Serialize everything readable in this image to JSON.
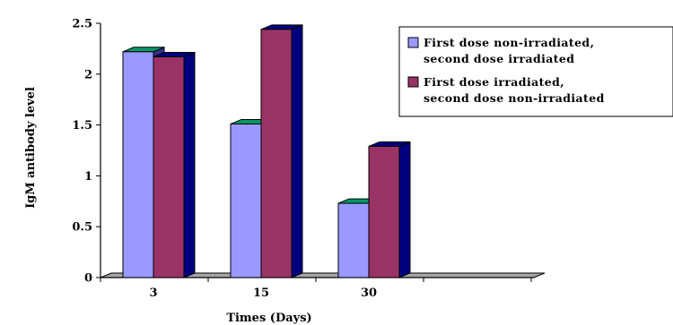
{
  "chart_data": {
    "type": "bar",
    "categories": [
      "3",
      "15",
      "30"
    ],
    "series": [
      {
        "name": "First dose non-irradiated, second dose irradiated",
        "label_lines": [
          "First dose non-irradiated,",
          "second dose irradiated"
        ],
        "values": [
          2.22,
          1.51,
          0.73
        ],
        "colors": {
          "front": "#9999ff",
          "top": "#009966",
          "side": "#33338a"
        }
      },
      {
        "name": "First dose irradiated, second dose non-irradiated",
        "label_lines": [
          "First dose irradiated,",
          "second dose non-irradiated"
        ],
        "values": [
          2.17,
          2.44,
          1.29
        ],
        "colors": {
          "front": "#993366",
          "top": "#000080",
          "side": "#000080"
        }
      }
    ],
    "y_ticks": [
      "0",
      "0.5",
      "1",
      "1.5",
      "2",
      "2.5"
    ],
    "ylim": [
      0,
      2.5
    ],
    "xlabel": "Times (Days)",
    "ylabel": "IgM antibody level",
    "legend_position": "top-right",
    "floor_color": "#a6a6a6",
    "grid": false
  }
}
